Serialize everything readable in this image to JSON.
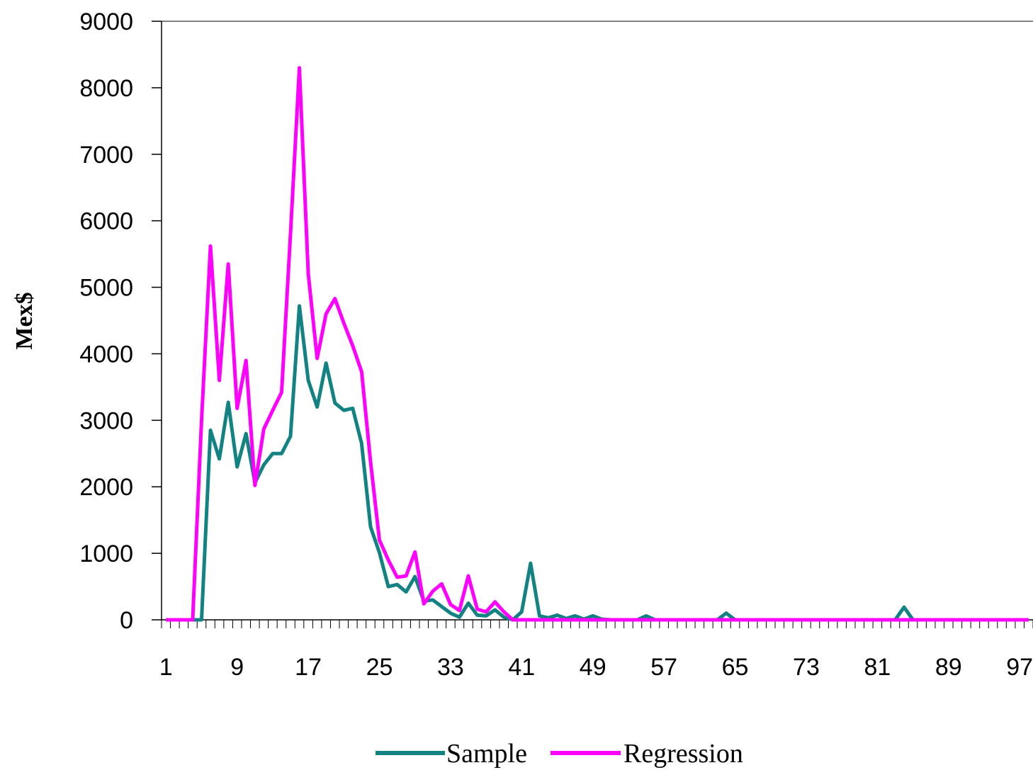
{
  "chart_data": {
    "type": "line",
    "title": "",
    "xlabel": "",
    "ylabel": "Mex$",
    "ylim": [
      0,
      9000
    ],
    "xlim": [
      1,
      98
    ],
    "y_ticks": [
      "0",
      "1000",
      "2000",
      "3000",
      "4000",
      "5000",
      "6000",
      "7000",
      "8000",
      "9000"
    ],
    "x_tick_labels": [
      "1",
      "9",
      "17",
      "25",
      "33",
      "41",
      "49",
      "57",
      "65",
      "73",
      "81",
      "89",
      "97"
    ],
    "x_tick_values": [
      1,
      9,
      17,
      25,
      33,
      41,
      49,
      57,
      65,
      73,
      81,
      89,
      97
    ],
    "grid": false,
    "legend_position": "bottom",
    "series": [
      {
        "name": "Sample",
        "color": "#138282",
        "x": [
          1,
          2,
          3,
          4,
          5,
          6,
          7,
          8,
          9,
          10,
          11,
          12,
          13,
          14,
          15,
          16,
          17,
          18,
          19,
          20,
          21,
          22,
          23,
          24,
          25,
          26,
          27,
          28,
          29,
          30,
          31,
          32,
          33,
          34,
          35,
          36,
          37,
          38,
          39,
          40,
          41,
          42,
          43,
          44,
          45,
          46,
          47,
          48,
          49,
          50,
          51,
          52,
          53,
          54,
          55,
          56,
          57,
          58,
          59,
          60,
          61,
          62,
          63,
          64,
          65,
          66,
          67,
          68,
          69,
          70,
          71,
          72,
          73,
          74,
          75,
          76,
          77,
          78,
          79,
          80,
          81,
          82,
          83,
          84,
          85,
          86,
          87,
          88,
          89,
          90,
          91,
          92,
          93,
          94,
          95,
          96,
          97,
          98
        ],
        "values": [
          0,
          0,
          0,
          0,
          0,
          2850,
          2420,
          3270,
          2300,
          2800,
          2060,
          2330,
          2500,
          2500,
          2760,
          4720,
          3600,
          3200,
          3860,
          3260,
          3150,
          3180,
          2650,
          1400,
          1010,
          500,
          530,
          420,
          650,
          280,
          300,
          200,
          100,
          40,
          250,
          70,
          60,
          150,
          40,
          0,
          120,
          850,
          60,
          30,
          70,
          20,
          60,
          10,
          60,
          10,
          0,
          0,
          0,
          0,
          60,
          0,
          0,
          0,
          0,
          0,
          0,
          0,
          0,
          100,
          0,
          0,
          0,
          0,
          0,
          0,
          0,
          0,
          0,
          0,
          0,
          0,
          0,
          0,
          0,
          0,
          0,
          0,
          0,
          190,
          0,
          0,
          0,
          0,
          0,
          0,
          0,
          0,
          0,
          0,
          0,
          0,
          0,
          0
        ]
      },
      {
        "name": "Regression",
        "color": "#ff00ff",
        "x": [
          1,
          2,
          3,
          4,
          5,
          6,
          7,
          8,
          9,
          10,
          11,
          12,
          13,
          14,
          15,
          16,
          17,
          18,
          19,
          20,
          21,
          22,
          23,
          24,
          25,
          26,
          27,
          28,
          29,
          30,
          31,
          32,
          33,
          34,
          35,
          36,
          37,
          38,
          39,
          40,
          41,
          42,
          43,
          44,
          45,
          46,
          47,
          48,
          49,
          50,
          51,
          52,
          53,
          54,
          55,
          56,
          57,
          58,
          59,
          60,
          61,
          62,
          63,
          64,
          65,
          66,
          67,
          68,
          69,
          70,
          71,
          72,
          73,
          74,
          75,
          76,
          77,
          78,
          79,
          80,
          81,
          82,
          83,
          84,
          85,
          86,
          87,
          88,
          89,
          90,
          91,
          92,
          93,
          94,
          95,
          96,
          97,
          98
        ],
        "values": [
          0,
          0,
          0,
          0,
          3000,
          5620,
          3600,
          5350,
          3180,
          3900,
          2020,
          2870,
          3150,
          3420,
          5800,
          8300,
          5200,
          3930,
          4600,
          4830,
          4460,
          4120,
          3730,
          2380,
          1200,
          900,
          640,
          660,
          1020,
          240,
          430,
          540,
          230,
          140,
          660,
          160,
          120,
          270,
          120,
          0,
          0,
          0,
          0,
          0,
          0,
          0,
          0,
          0,
          0,
          0,
          0,
          0,
          0,
          0,
          0,
          0,
          0,
          0,
          0,
          0,
          0,
          0,
          0,
          0,
          0,
          0,
          0,
          0,
          0,
          0,
          0,
          0,
          0,
          0,
          0,
          0,
          0,
          0,
          0,
          0,
          0,
          0,
          0,
          0,
          0,
          0,
          0,
          0,
          0,
          0,
          0,
          0,
          0,
          0,
          0,
          0,
          0,
          0
        ]
      }
    ]
  }
}
